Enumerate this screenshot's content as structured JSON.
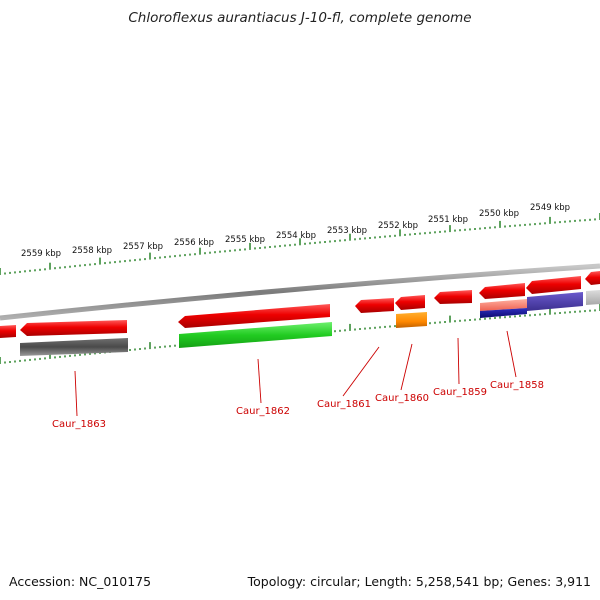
{
  "title": "Chloroflexus aurantiacus J-10-fl, complete genome",
  "footer": {
    "accession": "Accession: NC_010175",
    "summary": "Topology: circular; Length: 5,258,541 bp; Genes: 3,911"
  },
  "scale_labels": [
    "2559 kbp",
    "2558 kbp",
    "2557 kbp",
    "2556 kbp",
    "2555 kbp",
    "2554 kbp",
    "2553 kbp",
    "2552 kbp",
    "2551 kbp",
    "2550 kbp",
    "2549 kbp"
  ],
  "genes": [
    {
      "label": "Caur_1863"
    },
    {
      "label": "Caur_1862"
    },
    {
      "label": "Caur_1861"
    },
    {
      "label": "Caur_1860"
    },
    {
      "label": "Caur_1859"
    },
    {
      "label": "Caur_1858"
    }
  ],
  "colors": {
    "cds": "#ee0000",
    "label": "#cc0000",
    "tick": "#1a7a1a",
    "backbone": "#8a8a8a"
  }
}
